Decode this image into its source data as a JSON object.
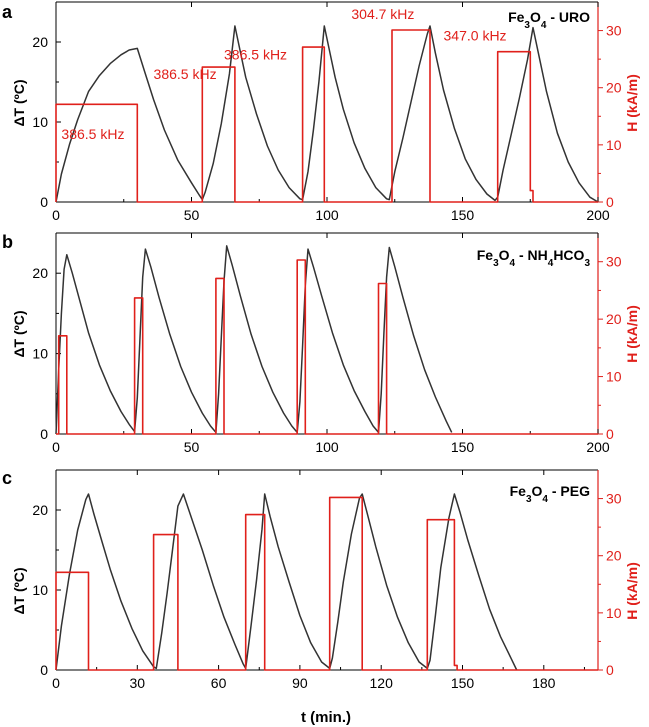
{
  "chart_data": [
    {
      "type": "line",
      "panel": "a",
      "sample_label": {
        "prefix": "Fe",
        "sub1": "3",
        "mid": "O",
        "sub2": "4",
        "suffix": " - URO"
      },
      "ylabel_left": "ΔT (ºC)",
      "ylabel_right": "H (kA/m)",
      "xlim": [
        0,
        200
      ],
      "ylim_left": [
        0,
        25
      ],
      "ylim_right": [
        0,
        35
      ],
      "xticks": [
        0,
        50,
        100,
        150,
        200
      ],
      "yticks_left": [
        0,
        10,
        20
      ],
      "yticks_right": [
        0,
        10,
        20,
        30
      ],
      "series": [
        {
          "name": "ΔT",
          "axis": "left",
          "color": "#333333",
          "x": [
            0,
            2,
            5,
            8,
            12,
            16,
            20,
            24,
            27,
            30,
            33,
            36,
            40,
            45,
            50,
            53,
            54,
            55,
            58,
            61,
            64,
            66,
            68,
            70,
            74,
            78,
            82,
            86,
            90,
            91,
            93,
            95,
            97,
            99,
            101,
            103,
            106,
            110,
            114,
            118,
            122,
            123,
            125,
            128,
            131,
            134,
            137,
            138,
            140,
            143,
            147,
            151,
            155,
            159,
            162,
            163,
            165,
            168,
            171,
            174,
            176,
            178,
            181,
            185,
            189,
            193,
            197,
            200
          ],
          "y": [
            0,
            3.5,
            7.2,
            10.3,
            13.8,
            15.8,
            17.3,
            18.4,
            19.0,
            19.2,
            16.0,
            12.8,
            9.0,
            5.2,
            2.4,
            0.8,
            0.3,
            1.2,
            4.8,
            9.8,
            16.0,
            22.0,
            18.8,
            15.6,
            11.0,
            7.0,
            4.0,
            1.8,
            0.4,
            0.3,
            3.8,
            9.0,
            15.0,
            22.0,
            18.8,
            15.6,
            11.6,
            7.4,
            4.2,
            1.8,
            0.4,
            0.3,
            3.8,
            8.0,
            12.5,
            17.0,
            21.0,
            22.0,
            18.6,
            14.0,
            9.2,
            5.4,
            2.8,
            1.0,
            0.2,
            0.6,
            4.0,
            8.5,
            13.0,
            17.8,
            21.8,
            18.6,
            13.8,
            8.6,
            5.0,
            2.4,
            0.6,
            0.0
          ]
        },
        {
          "name": "H",
          "axis": "right",
          "color": "#e0201b",
          "x": [
            0,
            0,
            30,
            30,
            54,
            54,
            66,
            66,
            91,
            91,
            99,
            99,
            124,
            124,
            138,
            138,
            163,
            163,
            175,
            175,
            176,
            176,
            200
          ],
          "y": [
            0,
            17.1,
            17.1,
            0,
            0,
            23.6,
            23.6,
            0,
            0,
            27.1,
            27.1,
            0,
            0,
            30.1,
            30.1,
            0,
            0,
            26.3,
            26.3,
            2.0,
            2.0,
            0,
            0
          ]
        }
      ],
      "annotations": [
        {
          "text": "386.5 kHz",
          "x": 2,
          "y_right": 11.0
        },
        {
          "text": "386.5 kHz",
          "x": 36,
          "y_right": 21.5
        },
        {
          "text": "386.5 kHz",
          "x": 62,
          "y_right": 24.9
        },
        {
          "text": "304.7 kHz",
          "x": 109,
          "y_right": 32.0
        },
        {
          "text": "347.0 kHz",
          "x": 143,
          "y_right": 28.3
        }
      ]
    },
    {
      "type": "line",
      "panel": "b",
      "sample_label": {
        "prefix": "Fe",
        "sub1": "3",
        "mid": "O",
        "sub2": "4",
        "suffix": " - NH",
        "sub3": "4",
        "suffix2": "HCO",
        "sub4": "3"
      },
      "ylabel_left": "ΔT (ºC)",
      "ylabel_right": "H (kA/m)",
      "xlim": [
        0,
        200
      ],
      "ylim_left": [
        0,
        25
      ],
      "ylim_right": [
        0,
        35
      ],
      "xticks": [
        0,
        50,
        100,
        150,
        200
      ],
      "yticks_left": [
        0,
        10,
        20
      ],
      "yticks_right": [
        0,
        10,
        20,
        30
      ],
      "series": [
        {
          "name": "ΔT",
          "axis": "left",
          "color": "#333333",
          "x": [
            0,
            1,
            2,
            3,
            4,
            6,
            9,
            12,
            16,
            20,
            24,
            27,
            29,
            30,
            31,
            32,
            33,
            35,
            38,
            42,
            46,
            50,
            54,
            57,
            59,
            60,
            61,
            62,
            63,
            65,
            68,
            72,
            76,
            80,
            84,
            87,
            89,
            90,
            91,
            92,
            93,
            95,
            98,
            102,
            106,
            110,
            114,
            117,
            119,
            120,
            121,
            122,
            123,
            125,
            128,
            132,
            136,
            140,
            144,
            146
          ],
          "y": [
            0,
            8,
            15,
            20.5,
            22.3,
            20.0,
            16.3,
            12.6,
            8.6,
            5.4,
            2.8,
            1.2,
            0.3,
            4.5,
            12.0,
            19.5,
            23.0,
            20.8,
            17.0,
            12.4,
            8.4,
            5.2,
            2.6,
            1.0,
            0.2,
            5.0,
            12.0,
            19.0,
            23.4,
            21.0,
            17.2,
            12.4,
            8.4,
            5.2,
            2.6,
            1.0,
            0.2,
            4.0,
            11.0,
            18.5,
            23.0,
            20.8,
            17.2,
            12.6,
            8.6,
            5.4,
            2.8,
            1.0,
            0.2,
            5.0,
            12.5,
            19.5,
            23.2,
            20.8,
            17.0,
            12.2,
            8.0,
            4.6,
            1.6,
            0.2
          ]
        },
        {
          "name": "H",
          "axis": "right",
          "color": "#e0201b",
          "x": [
            0,
            1,
            1,
            4,
            4,
            29,
            29,
            32,
            32,
            59,
            59,
            62,
            62,
            89,
            89,
            92,
            92,
            119,
            119,
            122,
            122,
            200
          ],
          "y": [
            0,
            0,
            17.1,
            17.1,
            0,
            0,
            23.7,
            23.7,
            0,
            0,
            27.1,
            27.1,
            0,
            0,
            30.3,
            30.3,
            0,
            0,
            26.2,
            26.2,
            0,
            0
          ]
        }
      ],
      "annotations": []
    },
    {
      "type": "line",
      "panel": "c",
      "sample_label": {
        "prefix": "Fe",
        "sub1": "3",
        "mid": "O",
        "sub2": "4",
        "suffix": " - PEG"
      },
      "ylabel_left": "ΔT (ºC)",
      "ylabel_right": "H (kA/m)",
      "xlabel": "t (min.)",
      "xlim": [
        0,
        200
      ],
      "ylim_left": [
        0,
        25
      ],
      "ylim_right": [
        0,
        35
      ],
      "xticks": [
        0,
        30,
        60,
        90,
        120,
        150,
        180
      ],
      "yticks_left": [
        0,
        10,
        20
      ],
      "yticks_right": [
        0,
        10,
        20,
        30
      ],
      "series": [
        {
          "name": "ΔT",
          "axis": "left",
          "color": "#333333",
          "x": [
            0,
            2,
            5,
            8,
            11,
            12,
            14,
            17,
            20,
            24,
            28,
            32,
            36,
            37,
            39,
            41,
            43,
            45,
            47,
            50,
            54,
            58,
            62,
            66,
            69,
            70,
            72,
            74,
            76,
            77,
            79,
            82,
            86,
            90,
            94,
            98,
            101,
            102,
            104,
            106,
            109,
            112,
            113,
            115,
            118,
            122,
            126,
            130,
            134,
            137,
            138,
            140,
            142,
            145,
            147,
            149,
            152,
            156,
            160,
            164,
            168,
            170
          ],
          "y": [
            0,
            5.5,
            12.0,
            17.5,
            21.3,
            22.0,
            19.5,
            16.0,
            12.6,
            8.6,
            5.2,
            2.4,
            0.4,
            0.2,
            4.6,
            9.6,
            15.0,
            20.5,
            22.0,
            19.0,
            15.0,
            10.6,
            6.6,
            3.2,
            0.8,
            0.2,
            5.6,
            11.2,
            17.6,
            22.0,
            19.2,
            15.4,
            11.0,
            6.8,
            3.4,
            1.0,
            0.2,
            1.5,
            6.0,
            11.0,
            17.0,
            21.5,
            22.0,
            19.4,
            15.4,
            10.6,
            6.6,
            3.4,
            1.0,
            0.2,
            1.2,
            6.8,
            12.8,
            19.0,
            22.0,
            19.8,
            16.2,
            11.8,
            7.6,
            4.2,
            1.4,
            0.0
          ]
        },
        {
          "name": "H",
          "axis": "right",
          "color": "#e0201b",
          "x": [
            0,
            0,
            12,
            12,
            36,
            36,
            45,
            45,
            70,
            70,
            77,
            77,
            101,
            101,
            113,
            113,
            137,
            137,
            147,
            147,
            148,
            148,
            200
          ],
          "y": [
            0,
            17.1,
            17.1,
            0,
            0,
            23.7,
            23.7,
            0,
            0,
            27.2,
            27.2,
            0,
            0,
            30.2,
            30.2,
            0,
            0,
            26.3,
            26.3,
            0.8,
            0.8,
            0,
            0
          ]
        }
      ],
      "annotations": []
    }
  ]
}
